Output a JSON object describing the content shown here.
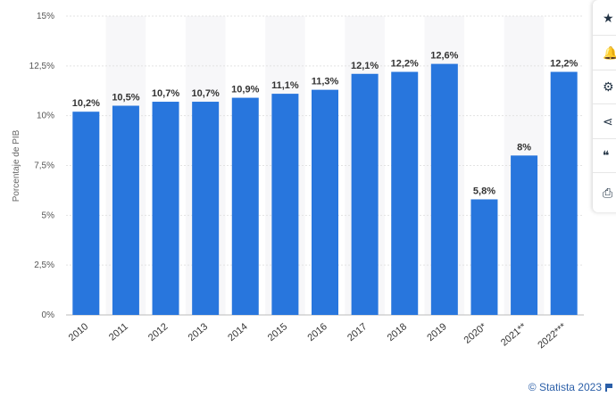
{
  "chart_data": {
    "type": "bar",
    "ylabel": "Porcentaje de PIB",
    "ylim": [
      0,
      15
    ],
    "yticks": [
      "0%",
      "2,5%",
      "5%",
      "7,5%",
      "10%",
      "12,5%",
      "15%"
    ],
    "ytick_values": [
      0,
      2.5,
      5,
      7.5,
      10,
      12.5,
      15
    ],
    "categories": [
      "2010",
      "2011",
      "2012",
      "2013",
      "2014",
      "2015",
      "2016",
      "2017",
      "2018",
      "2019",
      "2020*",
      "2021**",
      "2022***"
    ],
    "values": [
      10.2,
      10.5,
      10.7,
      10.7,
      10.9,
      11.1,
      11.3,
      12.1,
      12.2,
      12.6,
      5.8,
      8,
      12.2
    ],
    "value_labels": [
      "10,2%",
      "10,5%",
      "10,7%",
      "10,7%",
      "10,9%",
      "11,1%",
      "11,3%",
      "12,1%",
      "12,2%",
      "12,6%",
      "5,8%",
      "8%",
      "12,2%"
    ],
    "bar_color": "#2876dd",
    "grid": true
  },
  "toolbar": {
    "items": [
      {
        "name": "star-icon",
        "glyph": "★"
      },
      {
        "name": "bell-icon",
        "glyph": "🔔"
      },
      {
        "name": "gear-icon",
        "glyph": "⚙"
      },
      {
        "name": "share-icon",
        "glyph": "⋖"
      },
      {
        "name": "quote-icon",
        "glyph": "❝"
      },
      {
        "name": "print-icon",
        "glyph": "⎙"
      }
    ]
  },
  "credit": {
    "text": "© Statista 2023"
  }
}
